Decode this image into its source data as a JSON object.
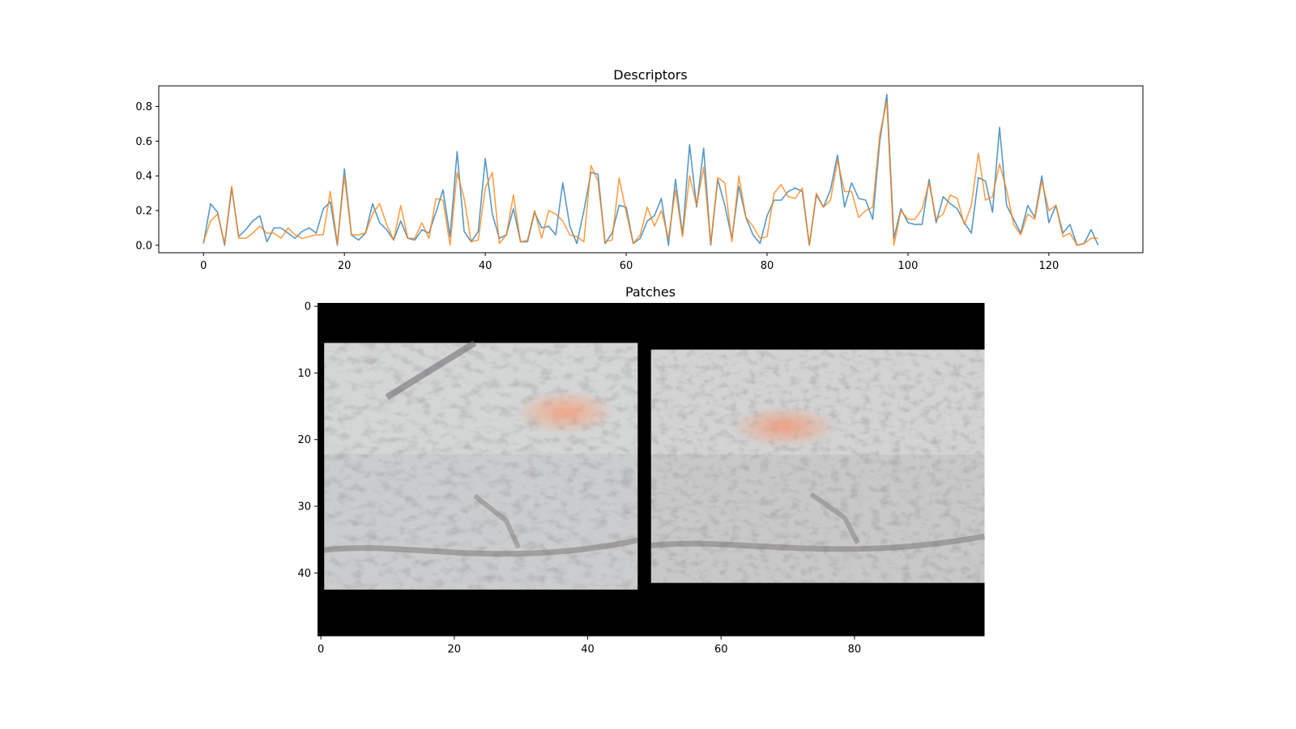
{
  "chart_data": [
    {
      "type": "line",
      "title": "Descriptors",
      "xlim": [
        -6.35,
        133.35
      ],
      "ylim": [
        -0.043,
        0.919
      ],
      "xticks": [
        0,
        20,
        40,
        60,
        80,
        100,
        120
      ],
      "yticks": [
        0.0,
        0.2,
        0.4,
        0.6,
        0.8
      ],
      "xtick_labels": [
        "0",
        "20",
        "40",
        "60",
        "80",
        "100",
        "120"
      ],
      "ytick_labels": [
        "0.0",
        "0.2",
        "0.4",
        "0.6",
        "0.8"
      ],
      "grid": false,
      "series": [
        {
          "color": "#1f77b4",
          "values": [
            0.01,
            0.24,
            0.19,
            0.0,
            0.33,
            0.05,
            0.09,
            0.14,
            0.17,
            0.02,
            0.1,
            0.1,
            0.07,
            0.04,
            0.08,
            0.1,
            0.07,
            0.21,
            0.25,
            0.0,
            0.44,
            0.06,
            0.03,
            0.07,
            0.24,
            0.13,
            0.09,
            0.03,
            0.14,
            0.04,
            0.03,
            0.09,
            0.07,
            0.19,
            0.32,
            0.05,
            0.54,
            0.08,
            0.02,
            0.08,
            0.5,
            0.18,
            0.04,
            0.06,
            0.21,
            0.02,
            0.02,
            0.19,
            0.1,
            0.11,
            0.06,
            0.36,
            0.11,
            0.01,
            0.2,
            0.42,
            0.41,
            0.01,
            0.07,
            0.23,
            0.22,
            0.01,
            0.04,
            0.14,
            0.17,
            0.27,
            0.0,
            0.38,
            0.06,
            0.58,
            0.22,
            0.56,
            0.0,
            0.38,
            0.23,
            0.04,
            0.34,
            0.16,
            0.06,
            0.01,
            0.17,
            0.26,
            0.26,
            0.31,
            0.33,
            0.31,
            0.0,
            0.29,
            0.22,
            0.32,
            0.52,
            0.22,
            0.36,
            0.27,
            0.26,
            0.15,
            0.6,
            0.87,
            0.04,
            0.21,
            0.13,
            0.12,
            0.12,
            0.38,
            0.13,
            0.28,
            0.24,
            0.21,
            0.13,
            0.07,
            0.39,
            0.37,
            0.19,
            0.68,
            0.23,
            0.15,
            0.07,
            0.23,
            0.16,
            0.4,
            0.13,
            0.23,
            0.07,
            0.12,
            0.0,
            0.01,
            0.09,
            0.0
          ]
        },
        {
          "color": "#ff7f0e",
          "values": [
            0.02,
            0.14,
            0.18,
            0.01,
            0.34,
            0.04,
            0.04,
            0.07,
            0.11,
            0.07,
            0.07,
            0.04,
            0.1,
            0.06,
            0.04,
            0.05,
            0.06,
            0.06,
            0.31,
            0.01,
            0.4,
            0.06,
            0.06,
            0.07,
            0.18,
            0.24,
            0.12,
            0.03,
            0.23,
            0.04,
            0.04,
            0.13,
            0.04,
            0.27,
            0.26,
            0.0,
            0.42,
            0.27,
            0.02,
            0.03,
            0.33,
            0.42,
            0.01,
            0.06,
            0.29,
            0.02,
            0.03,
            0.2,
            0.04,
            0.2,
            0.18,
            0.14,
            0.06,
            0.05,
            0.02,
            0.46,
            0.37,
            0.02,
            0.03,
            0.39,
            0.19,
            0.01,
            0.06,
            0.22,
            0.11,
            0.2,
            0.04,
            0.32,
            0.05,
            0.4,
            0.23,
            0.45,
            0.01,
            0.39,
            0.36,
            0.02,
            0.4,
            0.16,
            0.11,
            0.04,
            0.05,
            0.3,
            0.35,
            0.28,
            0.27,
            0.33,
            0.0,
            0.3,
            0.22,
            0.26,
            0.49,
            0.31,
            0.31,
            0.16,
            0.2,
            0.22,
            0.64,
            0.83,
            0.0,
            0.2,
            0.15,
            0.15,
            0.21,
            0.36,
            0.15,
            0.18,
            0.29,
            0.27,
            0.12,
            0.23,
            0.53,
            0.26,
            0.28,
            0.47,
            0.32,
            0.12,
            0.06,
            0.18,
            0.15,
            0.37,
            0.2,
            0.23,
            0.05,
            0.07,
            0.0,
            0.01,
            0.04,
            0.04
          ]
        }
      ]
    },
    {
      "type": "image",
      "title": "Patches",
      "xlim": [
        -0.5,
        99.5
      ],
      "ylim": [
        49.5,
        -0.5
      ],
      "xticks": [
        0,
        20,
        40,
        60,
        80
      ],
      "yticks": [
        0,
        10,
        20,
        30,
        40
      ],
      "xtick_labels": [
        "0",
        "20",
        "40",
        "60",
        "80"
      ],
      "ytick_labels": [
        "0",
        "10",
        "20",
        "30",
        "40"
      ],
      "background_color": "#000000",
      "patches": [
        {
          "x0": 0.5,
          "x1": 47.5,
          "y0": 5.5,
          "y1": 42.5,
          "base_color": "#cbcccd",
          "highlight_color": "#f2aa8a"
        },
        {
          "x0": 49.5,
          "x1": 99.5,
          "y0": 6.5,
          "y1": 41.5,
          "base_color": "#c8c8c8",
          "highlight_color": "#f2a585"
        }
      ]
    }
  ]
}
